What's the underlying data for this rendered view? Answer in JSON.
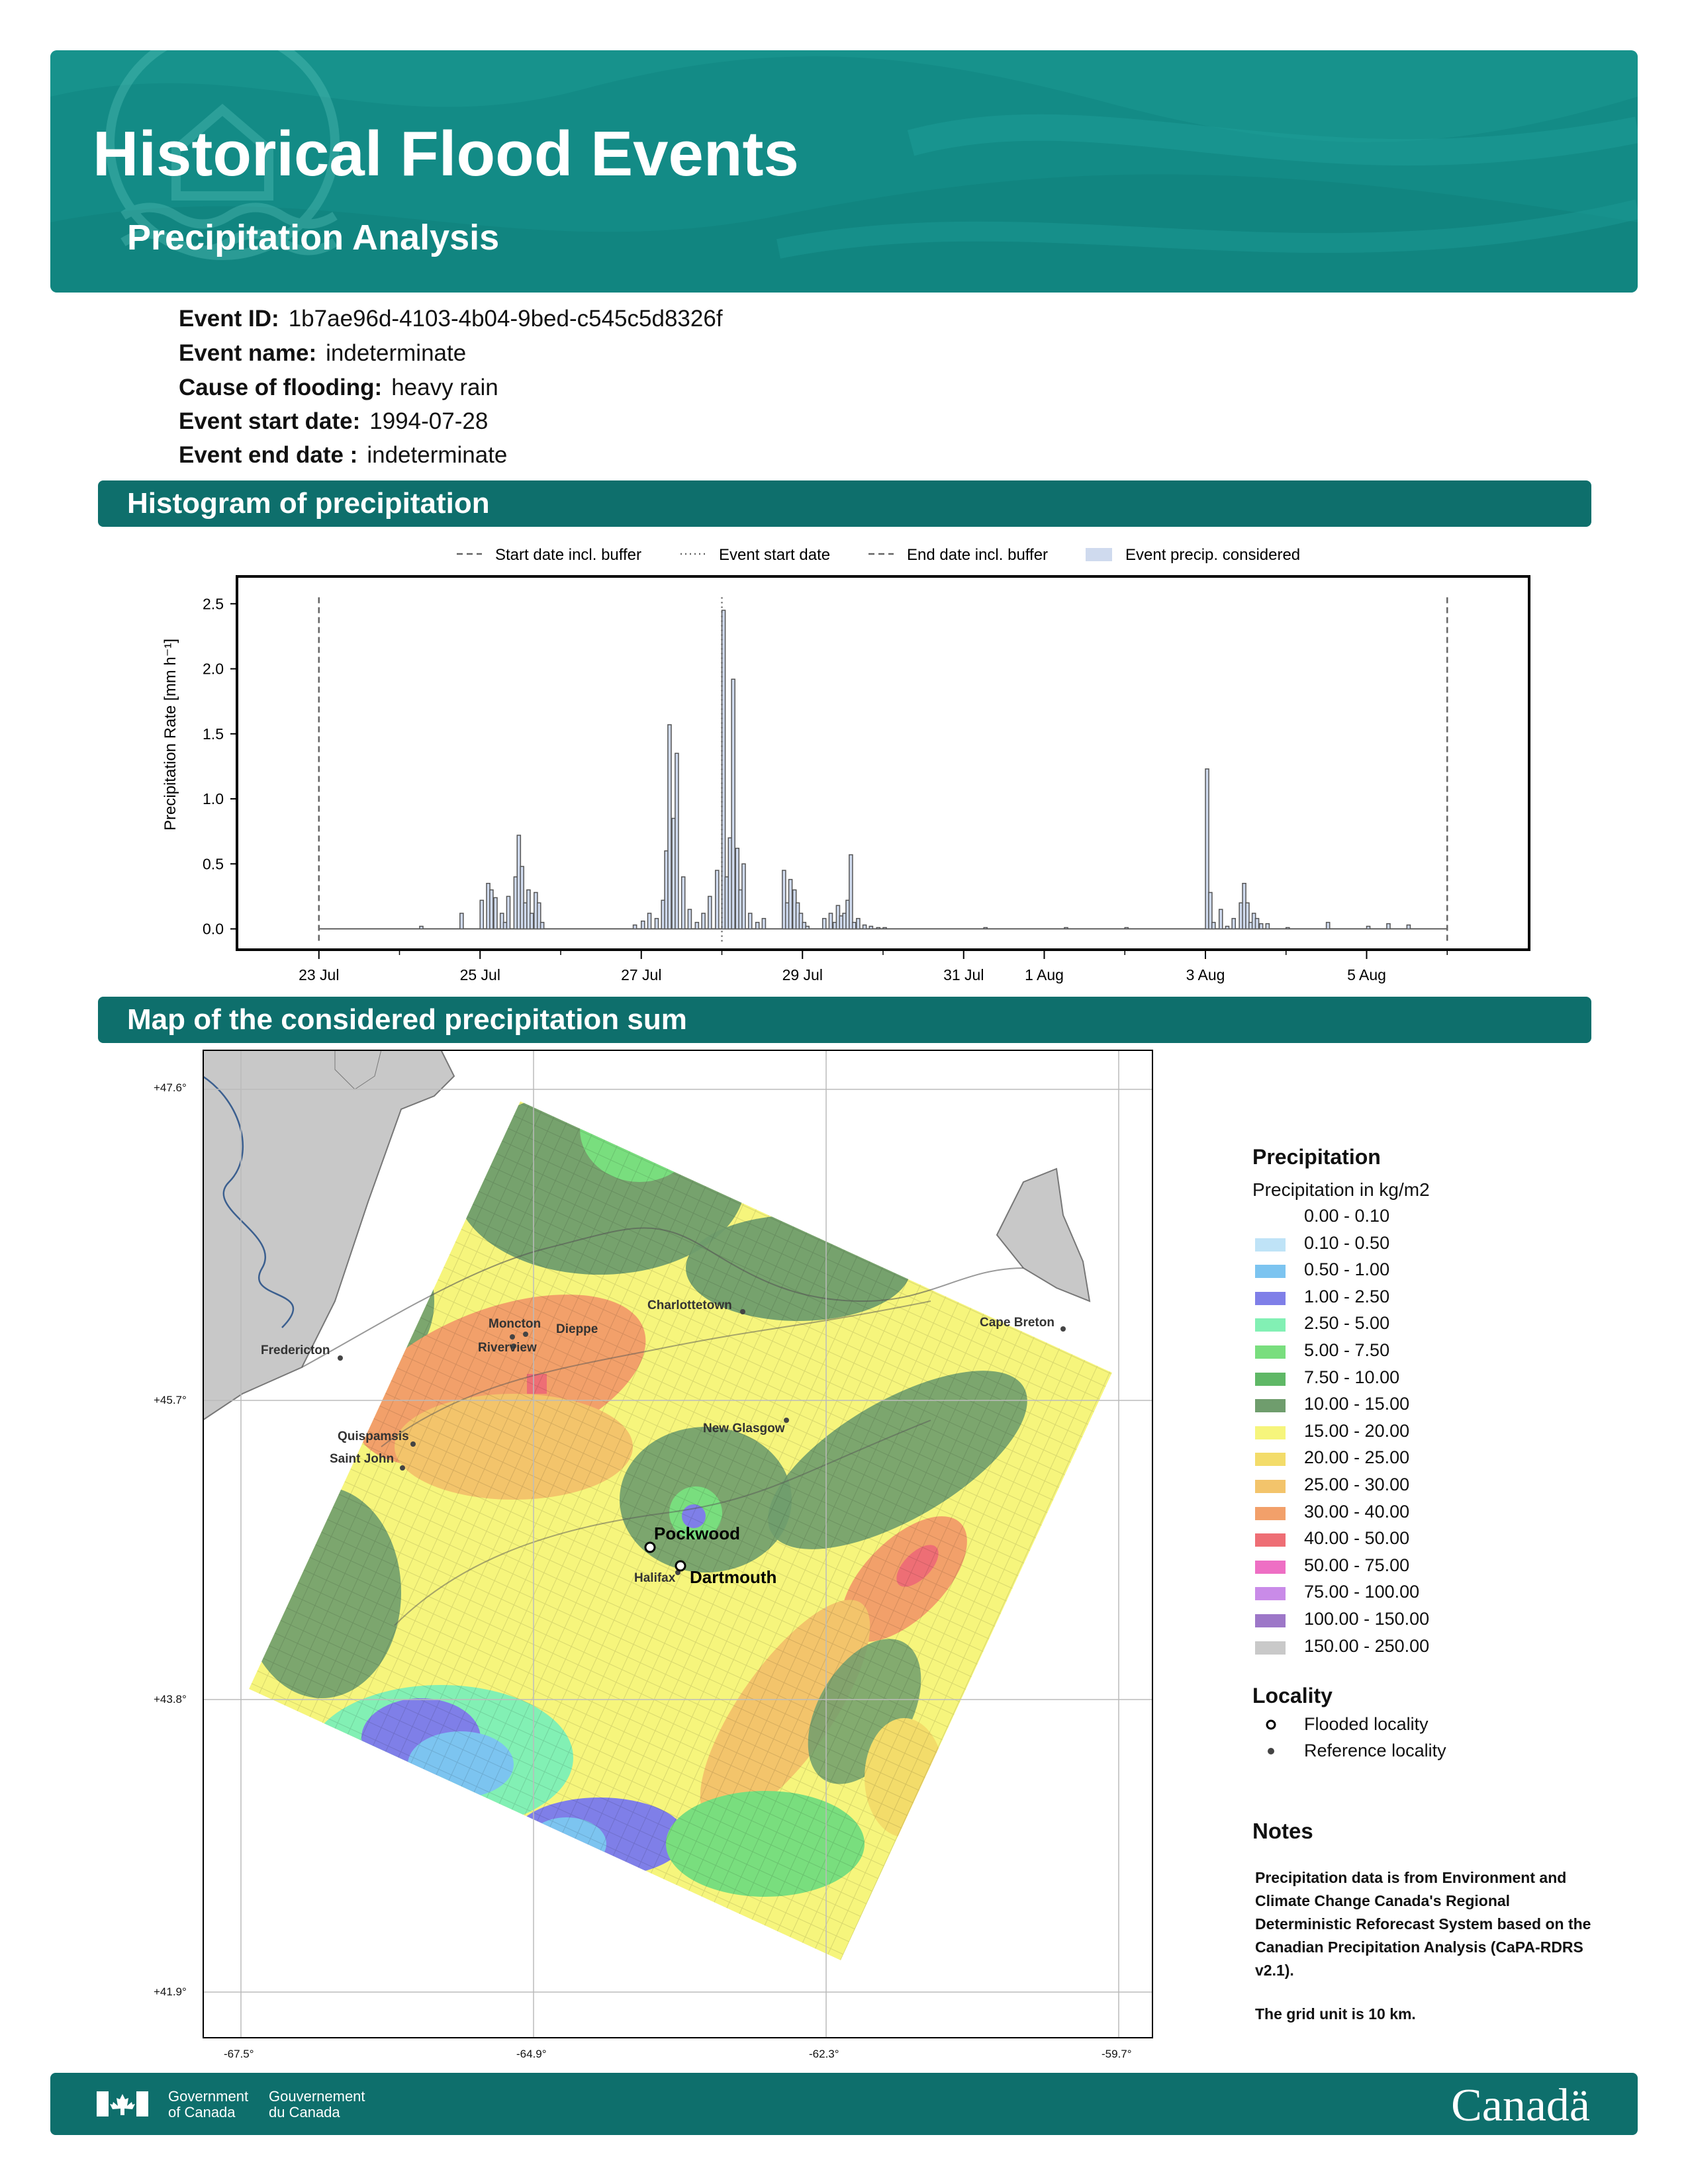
{
  "header": {
    "title": "Historical Flood Events",
    "subtitle": "Precipitation Analysis"
  },
  "event": {
    "id_label": "Event ID:",
    "id_value": "1b7ae96d-4103-4b04-9bed-c545c5d8326f",
    "name_label": "Event name:",
    "name_value": "indeterminate",
    "cause_label": "Cause of flooding:",
    "cause_value": "heavy rain",
    "start_label": "Event start date:",
    "start_value": "1994-07-28",
    "end_label": "Event end date :",
    "end_value": "indeterminate"
  },
  "sections": {
    "histogram": "Histogram of precipitation",
    "map": "Map of the considered precipitation sum"
  },
  "chart_data": {
    "type": "bar",
    "title": "",
    "xlabel": "",
    "ylabel": "Precipitation Rate [mm h⁻¹]",
    "ylim": [
      -0.15,
      2.7
    ],
    "yticks": [
      "0.0",
      "0.5",
      "1.0",
      "1.5",
      "2.0",
      "2.5"
    ],
    "xticks": [
      {
        "label": "23 Jul",
        "day": 23
      },
      {
        "label": "25 Jul",
        "day": 25
      },
      {
        "label": "27 Jul",
        "day": 27
      },
      {
        "label": "29 Jul",
        "day": 29
      },
      {
        "label": "31 Jul",
        "day": 31
      },
      {
        "label": "1 Aug",
        "day": 32
      },
      {
        "label": "3 Aug",
        "day": 34
      },
      {
        "label": "5 Aug",
        "day": 36
      }
    ],
    "legend": {
      "placement": "top",
      "items": [
        "Start date incl. buffer",
        "Event start date",
        "End date incl. buffer",
        "Event precip. considered"
      ]
    },
    "buffer_start_day": 23.0,
    "event_start_day": 28.0,
    "buffer_end_day": 37.0,
    "series": [
      {
        "x_day": [
          24.25,
          24.75,
          25.0,
          25.08,
          25.12,
          25.17,
          25.25,
          25.29,
          25.33,
          25.42,
          25.46,
          25.5,
          25.54,
          25.58,
          25.62,
          25.67,
          25.71,
          25.75,
          26.9,
          27.0,
          27.08,
          27.17,
          27.25,
          27.29,
          27.33,
          27.38,
          27.42,
          27.5,
          27.58,
          27.67,
          27.75,
          27.83,
          27.92,
          28.0,
          28.04,
          28.08,
          28.12,
          28.17,
          28.21,
          28.25,
          28.33,
          28.42,
          28.5,
          28.75,
          28.79,
          28.83,
          28.88,
          28.92,
          28.96,
          29.0,
          29.04,
          29.25,
          29.33,
          29.38,
          29.42,
          29.46,
          29.5,
          29.54,
          29.58,
          29.62,
          29.67,
          29.75,
          29.83,
          29.92,
          30.0,
          31.25,
          32.25,
          33.0,
          34.0,
          34.04,
          34.08,
          34.17,
          34.25,
          34.33,
          34.42,
          34.46,
          34.5,
          34.54,
          34.58,
          34.62,
          34.67,
          34.75,
          35.0,
          35.5,
          36.0,
          36.25,
          36.5
        ],
        "values": [
          0.02,
          0.12,
          0.22,
          0.35,
          0.3,
          0.24,
          0.12,
          0.05,
          0.25,
          0.4,
          0.72,
          0.48,
          0.2,
          0.3,
          0.12,
          0.28,
          0.2,
          0.05,
          0.03,
          0.06,
          0.12,
          0.08,
          0.22,
          0.6,
          1.57,
          0.85,
          1.35,
          0.4,
          0.15,
          0.05,
          0.12,
          0.25,
          0.45,
          2.45,
          0.4,
          0.7,
          1.92,
          0.62,
          0.3,
          0.5,
          0.12,
          0.05,
          0.08,
          0.45,
          0.2,
          0.38,
          0.3,
          0.2,
          0.12,
          0.05,
          0.02,
          0.08,
          0.12,
          0.05,
          0.18,
          0.1,
          0.12,
          0.22,
          0.57,
          0.05,
          0.08,
          0.03,
          0.02,
          0.01,
          0.01,
          0.01,
          0.01,
          0.01,
          1.23,
          0.28,
          0.05,
          0.15,
          0.02,
          0.08,
          0.2,
          0.35,
          0.2,
          0.05,
          0.12,
          0.08,
          0.04,
          0.04,
          0.01,
          0.05,
          0.02,
          0.04,
          0.03
        ]
      }
    ]
  },
  "map": {
    "lat_labels": [
      "+47.6°",
      "+45.7°",
      "+43.8°",
      "+41.9°"
    ],
    "lon_labels": [
      "-67.5°",
      "-64.9°",
      "-62.3°",
      "-59.7°"
    ],
    "colors": {
      "land": "#c8c8c8",
      "ocean": "#ffffff"
    },
    "reference_localities": [
      "Fredericton",
      "Moncton",
      "Dieppe",
      "Riverview",
      "Charlottetown",
      "Cape Breton",
      "New Glasgow",
      "Quispamsis",
      "Saint John",
      "Halifax"
    ],
    "flooded_localities": [
      "Pockwood",
      "Dartmouth"
    ]
  },
  "legend": {
    "precip_title": "Precipitation",
    "precip_sub": "Precipitation in kg/m2",
    "classes": [
      {
        "label": "0.00 - 0.10",
        "color": "#ffffff"
      },
      {
        "label": "0.10 - 0.50",
        "color": "#bfe3f7"
      },
      {
        "label": "0.50 - 1.00",
        "color": "#7cc4f0"
      },
      {
        "label": "1.00 - 2.50",
        "color": "#7f7fe8"
      },
      {
        "label": "2.50 - 5.00",
        "color": "#82f0b4"
      },
      {
        "label": "5.00 - 7.50",
        "color": "#79de7e"
      },
      {
        "label": "7.50 - 10.00",
        "color": "#5fb866"
      },
      {
        "label": "10.00 - 15.00",
        "color": "#6f9d6d"
      },
      {
        "label": "15.00 - 20.00",
        "color": "#f6f57c"
      },
      {
        "label": "20.00 - 25.00",
        "color": "#f3dc6a"
      },
      {
        "label": "25.00 - 30.00",
        "color": "#f3c46b"
      },
      {
        "label": "30.00 - 40.00",
        "color": "#f2a06a"
      },
      {
        "label": "40.00 - 50.00",
        "color": "#ee6e75"
      },
      {
        "label": "50.00 - 75.00",
        "color": "#ee6fc4"
      },
      {
        "label": "75.00 - 100.00",
        "color": "#c98be8"
      },
      {
        "label": "100.00 - 150.00",
        "color": "#9d77c8"
      },
      {
        "label": "150.00 - 250.00",
        "color": "#c9c9c9"
      }
    ],
    "locality_title": "Locality",
    "flooded": "Flooded locality",
    "reference": "Reference locality"
  },
  "notes": {
    "title": "Notes",
    "body": "Precipitation data is from Environment and Climate Change Canada's Regional Deterministic Reforecast System based on the Canadian Precipitation Analysis (CaPA-RDRS v2.1).",
    "grid": "The grid unit is 10 km."
  },
  "footer": {
    "gov_en_1": "Government",
    "gov_en_2": "of Canada",
    "gov_fr_1": "Gouvernement",
    "gov_fr_2": "du Canada",
    "wordmark": "Canadä"
  }
}
